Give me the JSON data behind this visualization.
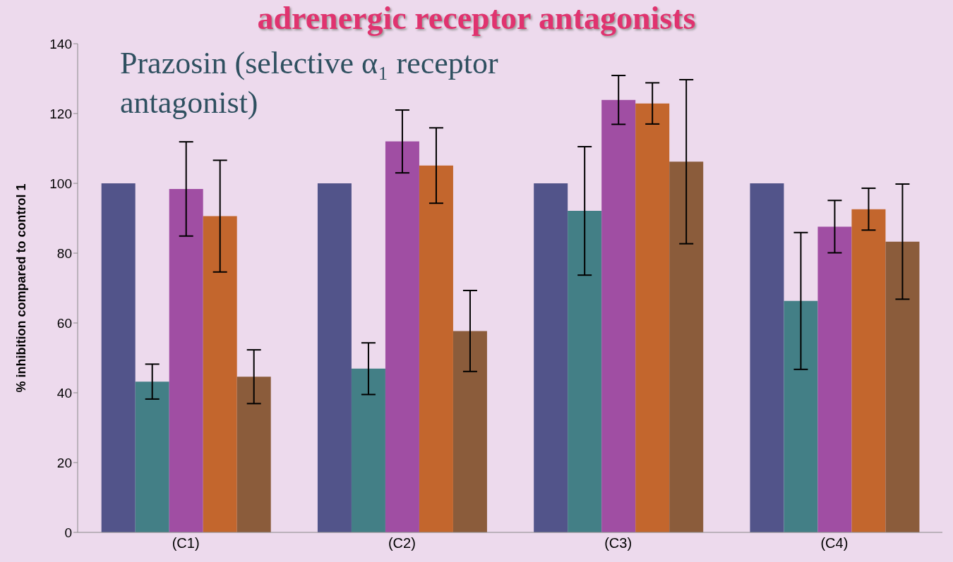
{
  "chart_data": {
    "type": "bar",
    "title": "adrenergic receptor antagonists",
    "subtitle": "Prazosin (selective α₁ receptor antagonist)",
    "ylabel": "% inhibition compared to control 1",
    "categories": [
      "(C1)",
      "(C2)",
      "(C3)",
      "(C4)"
    ],
    "series": [
      {
        "color": "#52548a",
        "values": [
          100,
          100,
          100,
          100
        ]
      },
      {
        "color": "#437f86",
        "values": [
          43.2,
          46.9,
          92.1,
          66.3
        ],
        "errors": [
          5,
          7.4,
          18.4,
          19.6
        ]
      },
      {
        "color": "#a04ea3",
        "values": [
          98.4,
          112,
          123.9,
          87.6
        ],
        "errors": [
          13.5,
          9,
          7,
          7.5
        ]
      },
      {
        "color": "#c3662d",
        "values": [
          90.6,
          105.1,
          122.9,
          92.6
        ],
        "errors": [
          16,
          10.8,
          5.9,
          6
        ]
      },
      {
        "color": "#8b5c3b",
        "values": [
          44.6,
          57.7,
          106.2,
          83.3
        ],
        "errors": [
          7.7,
          11.6,
          23.5,
          16.5
        ]
      }
    ],
    "ylim": [
      0,
      140
    ],
    "yticks": [
      0,
      20,
      40,
      60,
      80,
      100,
      120,
      140
    ],
    "grid": false,
    "legend": false
  }
}
